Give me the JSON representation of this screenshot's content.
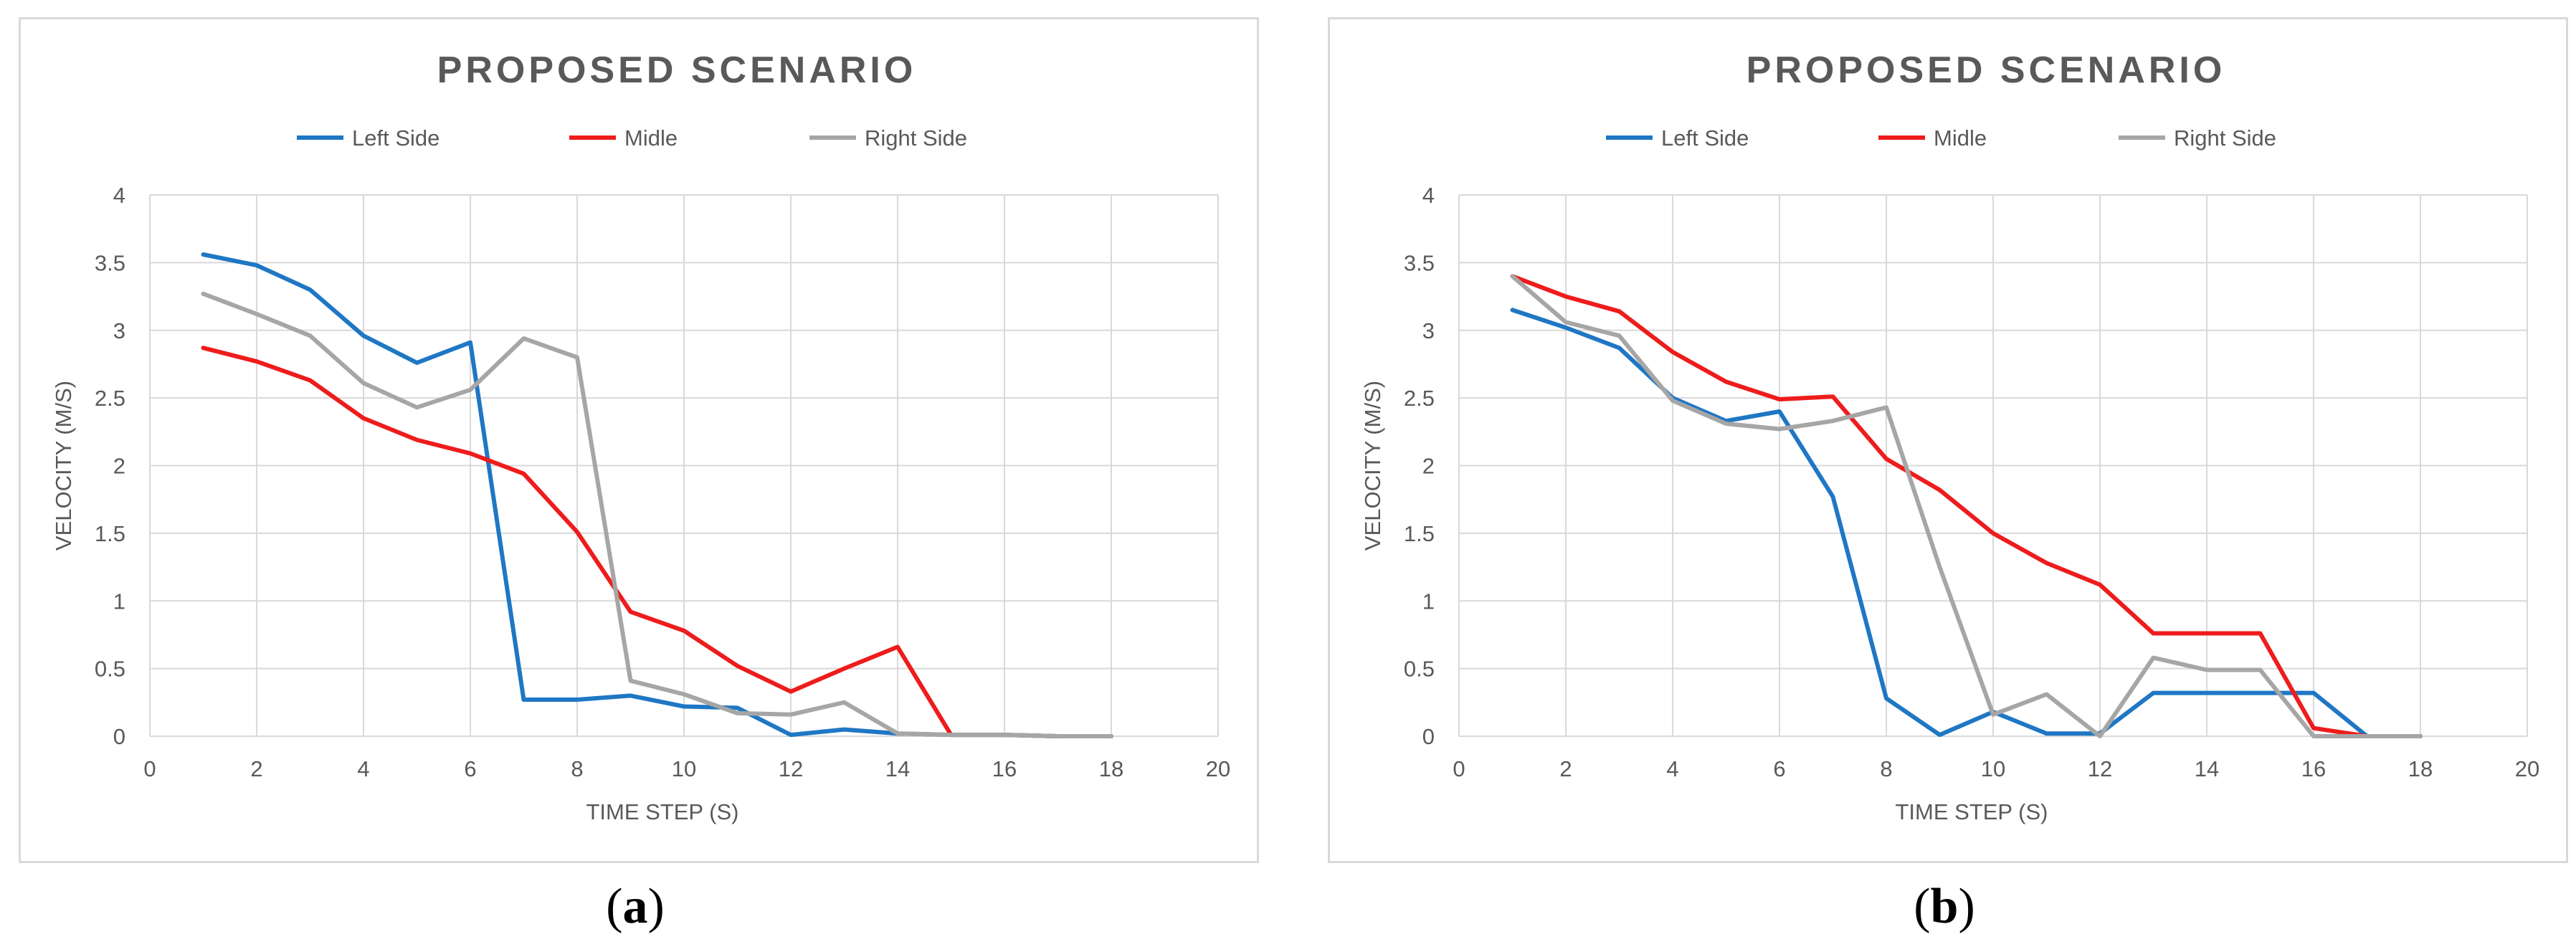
{
  "colors": {
    "left": "#1f77c4",
    "middle": "#ee1c1c",
    "right": "#a6a6a6",
    "grid": "#d9d9d9",
    "axis_text": "#595959",
    "title": "#595959"
  },
  "chart_data": [
    {
      "id": "a",
      "type": "line",
      "title": "PROPOSED SCENARIO",
      "xlabel": "TIME STEP (S)",
      "ylabel": "VELOCITY (M/S)",
      "xlim": [
        0,
        20
      ],
      "ylim": [
        0,
        4
      ],
      "xticks": [
        "0",
        "2",
        "4",
        "6",
        "8",
        "10",
        "12",
        "14",
        "16",
        "18",
        "20"
      ],
      "yticks": [
        "0",
        "0.5",
        "1",
        "1.5",
        "2",
        "2.5",
        "3",
        "3.5",
        "4"
      ],
      "legend_position": "top",
      "grid": true,
      "caption_open": "(",
      "caption_letter": "a",
      "caption_close": ")",
      "series": [
        {
          "name": "Left Side",
          "color_key": "left",
          "x": [
            1,
            2,
            3,
            4,
            5,
            6,
            7,
            8,
            9,
            10,
            11,
            12,
            13,
            14,
            15,
            16,
            17,
            18
          ],
          "values": [
            3.56,
            3.48,
            3.3,
            2.96,
            2.76,
            2.91,
            0.27,
            0.27,
            0.3,
            0.22,
            0.21,
            0.01,
            0.05,
            0.02,
            0.01,
            0.01,
            0.0,
            0.0
          ]
        },
        {
          "name": "Midle",
          "color_key": "middle",
          "x": [
            1,
            2,
            3,
            4,
            5,
            6,
            7,
            8,
            9,
            10,
            11,
            12,
            13,
            14,
            15,
            16,
            17,
            18
          ],
          "values": [
            2.87,
            2.77,
            2.63,
            2.35,
            2.19,
            2.09,
            1.94,
            1.51,
            0.92,
            0.78,
            0.52,
            0.33,
            0.5,
            0.66,
            0.01,
            0.01,
            0.0,
            0.0
          ]
        },
        {
          "name": "Right Side",
          "color_key": "right",
          "x": [
            1,
            2,
            3,
            4,
            5,
            6,
            7,
            8,
            9,
            10,
            11,
            12,
            13,
            14,
            15,
            16,
            17,
            18
          ],
          "values": [
            3.27,
            3.12,
            2.96,
            2.61,
            2.43,
            2.56,
            2.94,
            2.8,
            0.41,
            0.31,
            0.17,
            0.16,
            0.25,
            0.02,
            0.01,
            0.01,
            0.0,
            0.0
          ]
        }
      ]
    },
    {
      "id": "b",
      "type": "line",
      "title": "PROPOSED SCENARIO",
      "xlabel": "TIME STEP (S)",
      "ylabel": "VELOCITY (M/S)",
      "xlim": [
        0,
        20
      ],
      "ylim": [
        0,
        4
      ],
      "xticks": [
        "0",
        "2",
        "4",
        "6",
        "8",
        "10",
        "12",
        "14",
        "16",
        "18",
        "20"
      ],
      "yticks": [
        "0",
        "0.5",
        "1",
        "1.5",
        "2",
        "2.5",
        "3",
        "3.5",
        "4"
      ],
      "legend_position": "top",
      "grid": true,
      "caption_open": "(",
      "caption_letter": "b",
      "caption_close": ")",
      "series": [
        {
          "name": "Left Side",
          "color_key": "left",
          "x": [
            1,
            2,
            3,
            4,
            5,
            6,
            7,
            8,
            9,
            10,
            11,
            12,
            13,
            14,
            15,
            16,
            17,
            18
          ],
          "values": [
            3.15,
            3.02,
            2.87,
            2.5,
            2.33,
            2.4,
            1.77,
            0.28,
            0.01,
            0.18,
            0.02,
            0.02,
            0.32,
            0.32,
            0.32,
            0.32,
            0.0,
            0.0
          ]
        },
        {
          "name": "Midle",
          "color_key": "middle",
          "x": [
            1,
            2,
            3,
            4,
            5,
            6,
            7,
            8,
            9,
            10,
            11,
            12,
            13,
            14,
            15,
            16,
            17,
            18
          ],
          "values": [
            3.4,
            3.25,
            3.14,
            2.84,
            2.62,
            2.49,
            2.51,
            2.05,
            1.82,
            1.5,
            1.28,
            1.12,
            0.76,
            0.76,
            0.76,
            0.06,
            0.0,
            0.0
          ]
        },
        {
          "name": "Right Side",
          "color_key": "right",
          "x": [
            1,
            2,
            3,
            4,
            5,
            6,
            7,
            8,
            9,
            10,
            11,
            12,
            13,
            14,
            15,
            16,
            17,
            18
          ],
          "values": [
            3.4,
            3.06,
            2.96,
            2.48,
            2.31,
            2.27,
            2.33,
            2.43,
            1.25,
            0.16,
            0.31,
            0.0,
            0.58,
            0.49,
            0.49,
            0.0,
            0.0,
            0.0
          ]
        }
      ]
    }
  ]
}
